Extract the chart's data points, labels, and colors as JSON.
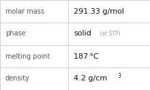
{
  "rows": [
    {
      "label": "molar mass",
      "value": "291.33 g/mol",
      "extra": null,
      "super": null
    },
    {
      "label": "phase",
      "value": "solid",
      "extra": " (at STP)",
      "super": null
    },
    {
      "label": "melting point",
      "value": "187 °C",
      "extra": null,
      "super": null
    },
    {
      "label": "density",
      "value": "4.2 g/cm",
      "extra": null,
      "super": "3"
    }
  ],
  "col_split": 0.455,
  "bg_color": "#ffffff",
  "border_color": "#c8c8c8",
  "label_color": "#555555",
  "value_color": "#111111",
  "extra_color": "#999999",
  "label_fontsize": 7.0,
  "value_fontsize": 8.0,
  "extra_fontsize": 5.5,
  "super_fontsize": 5.5
}
